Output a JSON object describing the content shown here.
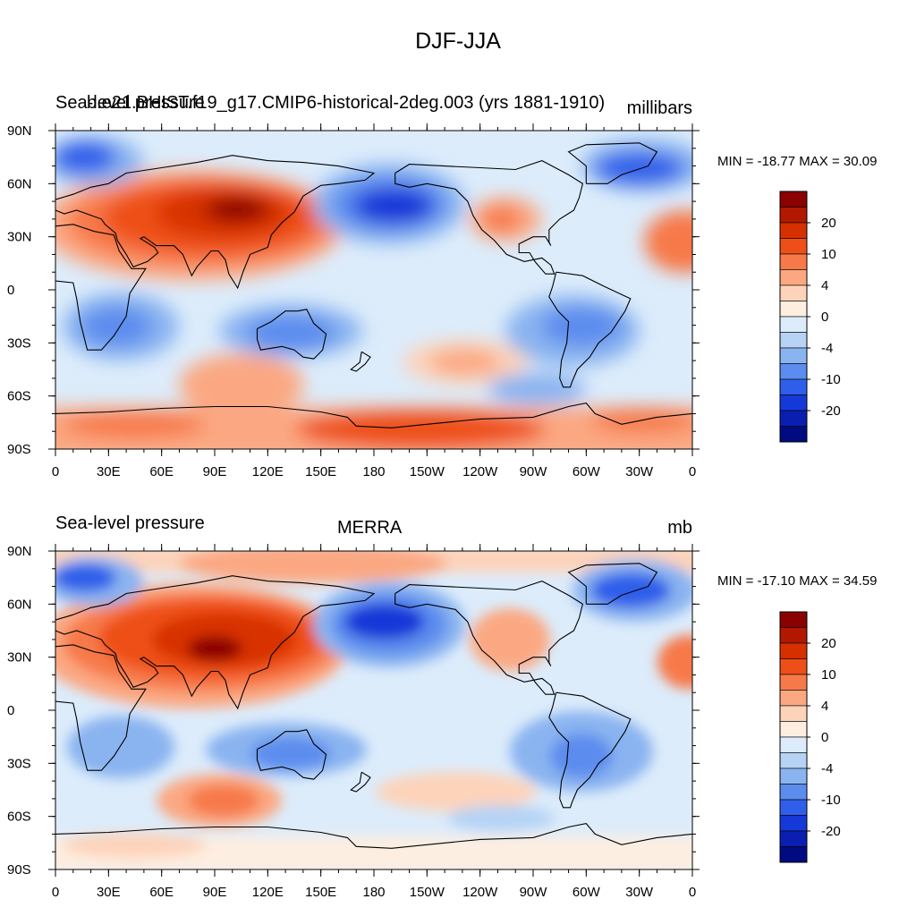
{
  "figure": {
    "title": "DJF-JJA"
  },
  "axes": {
    "lat_labels": [
      "90N",
      "60N",
      "30N",
      "0",
      "30S",
      "60S",
      "90S"
    ],
    "lon_labels": [
      "0",
      "30E",
      "60E",
      "90E",
      "120E",
      "150E",
      "180",
      "150W",
      "120W",
      "90W",
      "60W",
      "30W",
      "0"
    ]
  },
  "colorbar": {
    "colors": [
      "#8b0000",
      "#b21800",
      "#d73000",
      "#ee4f18",
      "#f7794a",
      "#fba882",
      "#fdd3ba",
      "#fdeee0",
      "#dcecfb",
      "#b6d3f5",
      "#8ab4f0",
      "#5b8cee",
      "#2f5fea",
      "#1538d8",
      "#0a1fb2",
      "#000b82"
    ],
    "labels": [
      "20",
      "10",
      "4",
      "0",
      "-4",
      "-10",
      "-20"
    ]
  },
  "panels": [
    {
      "left": "Sea-level pressure",
      "center": "b.e21.BHIST.f19_g17.CMIP6-historical-2deg.003 (yrs 1881-1910)",
      "right": "millibars",
      "min_max": "MIN = -18.77 MAX =  30.09",
      "min": -18.77,
      "max": 30.09
    },
    {
      "left": "Sea-level pressure",
      "center": "MERRA",
      "right": "mb",
      "min_max": "MIN = -17.10 MAX =  34.59",
      "min": -17.1,
      "max": 34.59
    }
  ],
  "map_data": {
    "projection": "cylindrical-equidistant",
    "lon_range": [
      0,
      360
    ],
    "lat_range": [
      -90,
      90
    ],
    "field": "DJF minus JJA sea-level pressure difference",
    "contour_levels": [
      -20,
      -15,
      -10,
      -6,
      -4,
      -2,
      0,
      2,
      4,
      6,
      10,
      15,
      20
    ]
  }
}
